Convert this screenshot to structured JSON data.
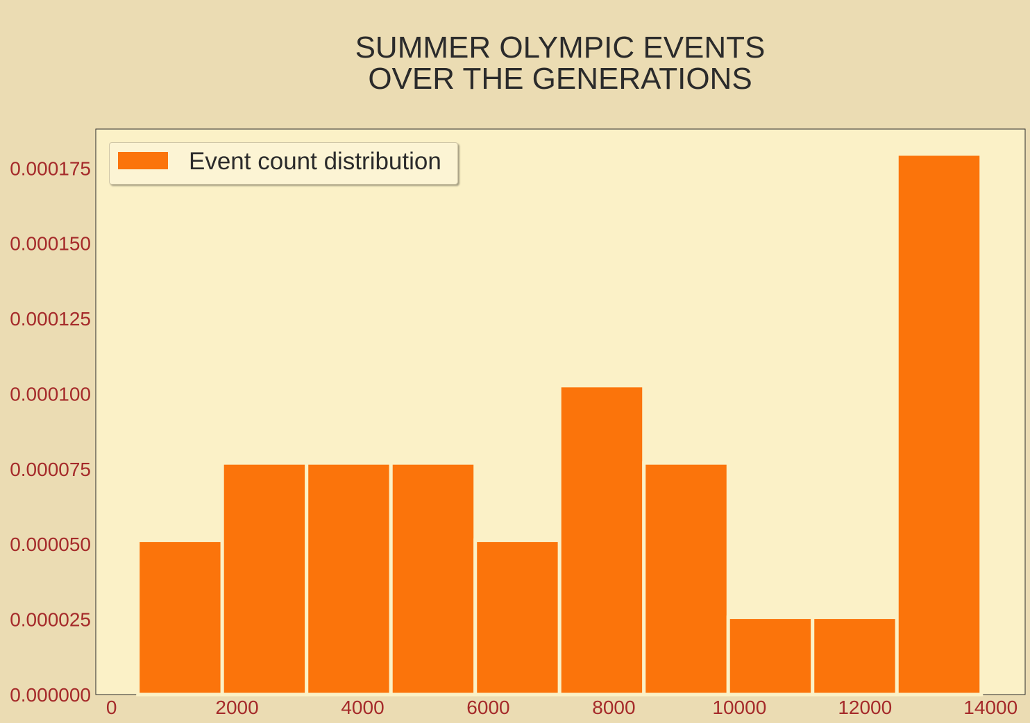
{
  "chart_data": {
    "type": "bar",
    "title": "SUMMER OLYMPIC EVENTS\nOVER THE GENERATIONS",
    "xlabel": "",
    "ylabel": "",
    "series": [
      {
        "name": "Event count distribution",
        "bins": [
          {
            "start": 421,
            "end": 1764,
            "value": 5.13e-05
          },
          {
            "start": 1764,
            "end": 3107,
            "value": 7.7e-05
          },
          {
            "start": 3107,
            "end": 4450,
            "value": 7.7e-05
          },
          {
            "start": 4450,
            "end": 5793,
            "value": 7.7e-05
          },
          {
            "start": 5793,
            "end": 7136,
            "value": 5.13e-05
          },
          {
            "start": 7136,
            "end": 8479,
            "value": 0.0001027
          },
          {
            "start": 8479,
            "end": 9822,
            "value": 7.7e-05
          },
          {
            "start": 9822,
            "end": 11165,
            "value": 2.57e-05
          },
          {
            "start": 11165,
            "end": 12508,
            "value": 2.57e-05
          },
          {
            "start": 12508,
            "end": 13851,
            "value": 0.0001797
          }
        ]
      }
    ],
    "xlim": [
      -250,
      14550
    ],
    "ylim": [
      0,
      0.000188
    ],
    "xticks": [
      0,
      2000,
      4000,
      6000,
      8000,
      10000,
      12000,
      14000
    ],
    "xtick_labels": [
      "0",
      "2000",
      "4000",
      "6000",
      "8000",
      "10000",
      "12000",
      "14000"
    ],
    "yticks": [
      0,
      2.5e-05,
      5e-05,
      7.5e-05,
      0.0001,
      0.000125,
      0.00015,
      0.000175
    ],
    "ytick_labels": [
      "0.000000",
      "0.000025",
      "0.000050",
      "0.000075",
      "0.000100",
      "0.000125",
      "0.000150",
      "0.000175"
    ],
    "grid": false,
    "legend_position": "top-left",
    "colors": {
      "figure_background": "#ebdcb3",
      "plot_background": "#fbf1c7",
      "bar": "#fb740b",
      "bar_edge": "#fbf1c7",
      "tick_label": "#a52a2a",
      "title": "#2b2b2b"
    }
  }
}
